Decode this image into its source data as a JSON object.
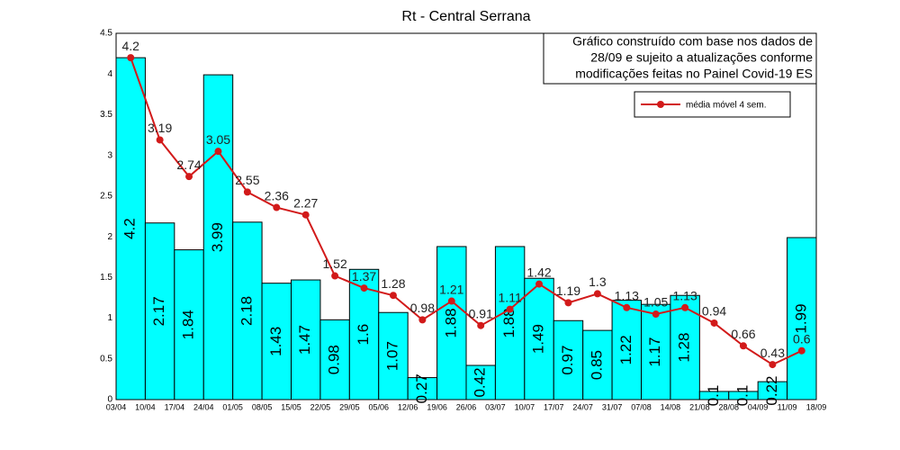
{
  "chart_data": {
    "type": "bar_line",
    "title": "Rt - Central Serrana",
    "annotation": [
      "Gráfico construído com base nos dados de",
      "28/09 e sujeito a atualizações conforme",
      "modificações feitas no Painel Covid-19 ES"
    ],
    "x_edge_labels": [
      "03/04",
      "10/04",
      "17/04",
      "24/04",
      "01/05",
      "08/05",
      "15/05",
      "22/05",
      "29/05",
      "05/06",
      "12/06",
      "19/06",
      "26/06",
      "03/07",
      "10/07",
      "17/07",
      "24/07",
      "31/07",
      "07/08",
      "14/08",
      "21/08",
      "28/08",
      "04/09",
      "11/09",
      "18/09"
    ],
    "bar_color": "#00ffff",
    "values": [
      4.2,
      2.17,
      1.84,
      3.99,
      2.18,
      1.43,
      1.47,
      0.98,
      1.6,
      1.07,
      0.27,
      1.88,
      0.42,
      1.88,
      1.49,
      0.97,
      0.85,
      1.22,
      1.17,
      1.28,
      0.1,
      0.1,
      0.22,
      1.99
    ],
    "series": [
      {
        "name": "média móvel 4 sem.",
        "color": "#d21a1a",
        "values": [
          4.2,
          3.19,
          2.74,
          3.05,
          2.55,
          2.36,
          2.27,
          1.52,
          1.37,
          1.28,
          0.98,
          1.21,
          0.91,
          1.11,
          1.42,
          1.19,
          1.3,
          1.13,
          1.05,
          1.13,
          0.94,
          0.66,
          0.43,
          0.6
        ]
      }
    ],
    "ylim": [
      0,
      4.5
    ],
    "yticks": [
      0,
      0.5,
      1,
      1.5,
      2,
      2.5,
      3,
      3.5,
      4,
      4.5
    ]
  }
}
